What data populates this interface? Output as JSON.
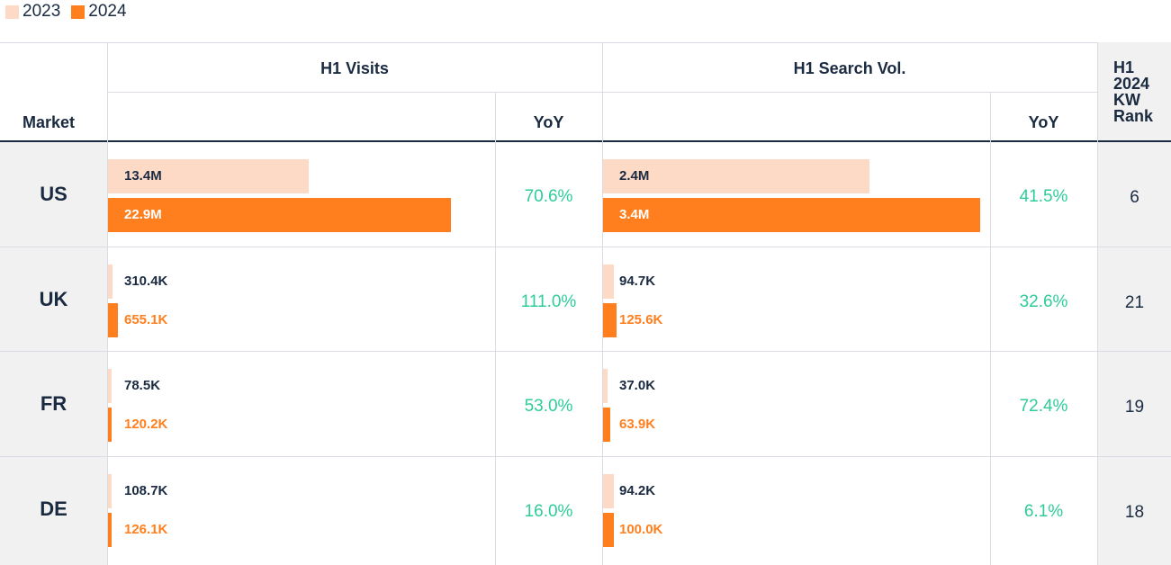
{
  "legend": [
    {
      "label": "2023",
      "color": "#fddac6"
    },
    {
      "label": "2024",
      "color": "#ff7f1e"
    }
  ],
  "headers": {
    "market": "Market",
    "visits": "H1 Visits",
    "search": "H1 Search Vol.",
    "yoy": "YoY",
    "rank_lines": [
      "H1",
      "2024",
      "KW",
      "Rank"
    ]
  },
  "chart_data": {
    "type": "bar",
    "categories": [
      "US",
      "UK",
      "FR",
      "DE"
    ],
    "colors": {
      "2023": "#fddac6",
      "2024": "#ff7f1e",
      "yoy": "#2ecc9a"
    },
    "visits": {
      "series": [
        {
          "name": "2023",
          "values": [
            13400000,
            310400,
            78500,
            108700
          ],
          "labels": [
            "13.4M",
            "310.4K",
            "78.5K",
            "108.7K"
          ]
        },
        {
          "name": "2024",
          "values": [
            22900000,
            655100,
            120200,
            126100
          ],
          "labels": [
            "22.9M",
            "655.1K",
            "120.2K",
            "126.1K"
          ]
        }
      ],
      "yoy": [
        "70.6%",
        "111.0%",
        "53.0%",
        "16.0%"
      ]
    },
    "search": {
      "series": [
        {
          "name": "2023",
          "values": [
            2400000,
            94700,
            37000,
            94200
          ],
          "labels": [
            "2.4M",
            "94.7K",
            "37.0K",
            "94.2K"
          ]
        },
        {
          "name": "2024",
          "values": [
            3400000,
            125600,
            63900,
            100000
          ],
          "labels": [
            "3.4M",
            "125.6K",
            "63.9K",
            "100.0K"
          ]
        }
      ],
      "yoy": [
        "41.5%",
        "32.6%",
        "72.4%",
        "6.1%"
      ]
    },
    "kw_rank": [
      "6",
      "21",
      "19",
      "18"
    ]
  }
}
